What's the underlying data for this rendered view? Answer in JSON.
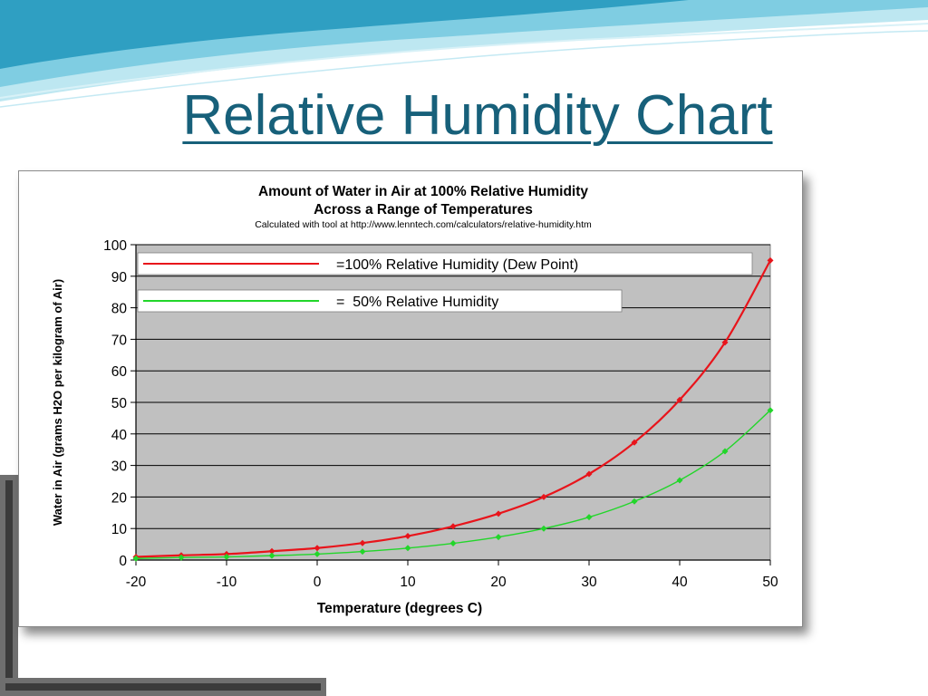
{
  "slide": {
    "title": "Relative Humidity Chart"
  },
  "chart_data": {
    "type": "line",
    "title": "Amount of Water in Air at 100% Relative Humidity",
    "subtitle": "Across a Range of Temperatures",
    "source_note": "Calculated with tool at http://www.lenntech.com/calculators/relative-humidity.htm",
    "xlabel": "Temperature (degrees C)",
    "ylabel": "Water in Air (grams H2O per kilogram of Air)",
    "xlim": [
      -20,
      50
    ],
    "ylim": [
      0,
      100
    ],
    "x_ticks": [
      -20,
      -10,
      0,
      10,
      20,
      30,
      40,
      50
    ],
    "y_ticks": [
      0,
      10,
      20,
      30,
      40,
      50,
      60,
      70,
      80,
      90,
      100
    ],
    "grid": "horizontal",
    "legend_position": "top-left",
    "x": [
      -20,
      -15,
      -10,
      -5,
      0,
      5,
      10,
      15,
      20,
      25,
      30,
      35,
      40,
      45,
      50
    ],
    "series": [
      {
        "name": "=100% Relative Humidity (Dew Point)",
        "color": "#e8141b",
        "values": [
          1.0,
          1.5,
          1.9,
          2.8,
          3.8,
          5.4,
          7.6,
          10.7,
          14.7,
          20.0,
          27.3,
          37.3,
          50.8,
          69.0,
          95.0
        ]
      },
      {
        "name": "=  50% Relative Humidity",
        "color": "#22d62a",
        "values": [
          0.5,
          0.8,
          1.0,
          1.4,
          1.9,
          2.7,
          3.8,
          5.3,
          7.3,
          10.0,
          13.6,
          18.6,
          25.3,
          34.5,
          47.5
        ]
      }
    ],
    "plot_background": "#c0c0c0"
  }
}
